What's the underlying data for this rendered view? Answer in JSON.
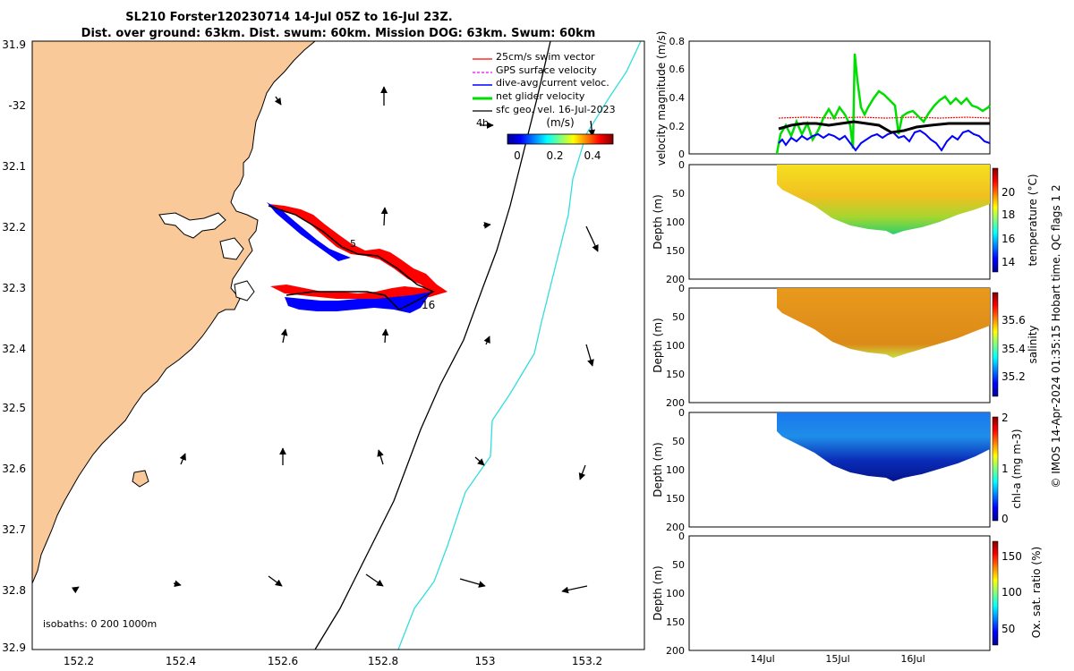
{
  "header": {
    "title_line1": "SL210 Forster120230714 14-Jul 05Z to 16-Jul 23Z.",
    "title_line2": "Dist. over ground: 63km. Dist. swum: 60km. Mission DOG: 63km. Swum: 60km"
  },
  "map": {
    "lon_ticks": [
      "152.2",
      "152.4",
      "152.6",
      "152.8",
      "153",
      "153.2"
    ],
    "lat_ticks": [
      "31.9",
      "-32",
      "32.1",
      "32.2",
      "32.3",
      "32.4",
      "32.5",
      "32.6",
      "32.7",
      "32.8",
      "32.9"
    ],
    "isobaths_label": "isobaths: 0   200  1000m",
    "legend": [
      {
        "label": "25cm/s swim vector",
        "color": "#ff0000"
      },
      {
        "label": "GPS surface velocity",
        "color": "#ff00ff"
      },
      {
        "label": "dive-avg current veloc.",
        "color": "#0000ff"
      },
      {
        "label": "net glider velocity",
        "color": "#00dd00"
      },
      {
        "label": "sfc geo. vel. 16-Jul-2023",
        "color": "#000000"
      }
    ],
    "colorbar": {
      "unit": "(m/s)",
      "ticks": [
        "0",
        "0.2",
        "0.4"
      ],
      "tag": "4h"
    },
    "track_labels": [
      "5",
      "16"
    ],
    "colors": {
      "land": "#f9c99a",
      "coast": "#000000",
      "isobath_200": "#000000",
      "isobath_1000": "#33dddd",
      "swim": "#ff0000",
      "current": "#0000ff"
    }
  },
  "velocity_panel": {
    "ylabel": "velocity magnitude (m/s)",
    "yticks": [
      "0",
      "0.2",
      "0.4",
      "0.6",
      "0.8"
    ],
    "series": [
      {
        "name": "net glider velocity",
        "color": "#00dd00"
      },
      {
        "name": "dive-avg current veloc.",
        "color": "#0000ff"
      },
      {
        "name": "25cm/s swim vector",
        "color": "#ff0000"
      }
    ]
  },
  "section_panels": [
    {
      "ylabel": "Depth (m)",
      "yticks": [
        "0",
        "50",
        "100",
        "150",
        "200"
      ],
      "cbar_label": "temperature (°C)",
      "cbar_ticks": [
        "20",
        "18",
        "16",
        "14"
      ]
    },
    {
      "ylabel": "Depth (m)",
      "yticks": [
        "0",
        "50",
        "100",
        "150",
        "200"
      ],
      "cbar_label": "salinity",
      "cbar_ticks": [
        "35.6",
        "35.4",
        "35.2"
      ]
    },
    {
      "ylabel": "Depth (m)",
      "yticks": [
        "0",
        "50",
        "100",
        "150",
        "200"
      ],
      "cbar_label": "chl-a (mg m-3)",
      "cbar_ticks": [
        "2",
        "1",
        "0"
      ]
    },
    {
      "ylabel": "Depth (m)",
      "yticks": [
        "0",
        "50",
        "100",
        "150",
        "200"
      ],
      "cbar_label": "Ox. sat. ratio (%)",
      "cbar_ticks": [
        "150",
        "100",
        "50"
      ]
    }
  ],
  "time_axis": {
    "ticks": [
      "14Jul",
      "15Jul",
      "16Jul"
    ]
  },
  "side_note": "© IMOS 14-Apr-2024 01:35:15 Hobart time. QC flags 1  2"
}
